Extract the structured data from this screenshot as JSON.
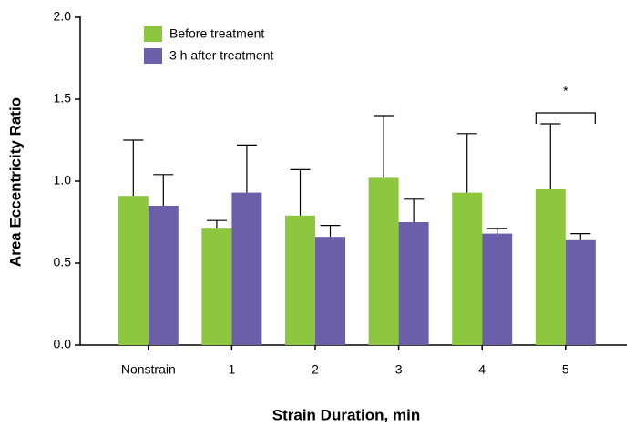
{
  "chart_data": {
    "type": "bar",
    "xlabel": "Strain Duration, min",
    "ylabel": "Area Eccentricity Ratio",
    "categories": [
      "Nonstrain",
      "1",
      "2",
      "3",
      "4",
      "5"
    ],
    "series": [
      {
        "name": "Before treatment",
        "color": "#8dc63f",
        "values": [
          0.91,
          0.71,
          0.79,
          1.02,
          0.93,
          0.95
        ],
        "errors": [
          0.34,
          0.05,
          0.28,
          0.38,
          0.36,
          0.4
        ]
      },
      {
        "name": "3 h after treatment",
        "color": "#6a5fa8",
        "values": [
          0.85,
          0.93,
          0.66,
          0.75,
          0.68,
          0.64
        ],
        "errors": [
          0.19,
          0.29,
          0.07,
          0.14,
          0.03,
          0.04
        ]
      }
    ],
    "ylim": [
      0,
      2
    ],
    "yticks": [
      {
        "value": 0,
        "label": "0.0"
      },
      {
        "value": 0.5,
        "label": "0.5"
      },
      {
        "value": 1,
        "label": "1.0"
      },
      {
        "value": 1.5,
        "label": "1.5"
      },
      {
        "value": 2,
        "label": "2.0"
      }
    ],
    "annotation": "*",
    "legend": "upper left"
  }
}
